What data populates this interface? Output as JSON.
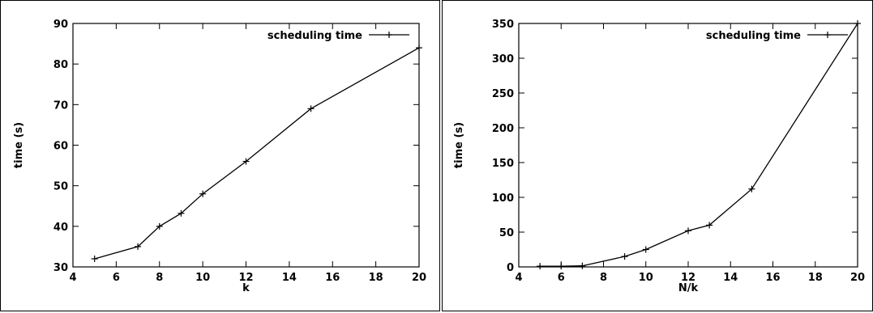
{
  "chart_data": [
    {
      "type": "line",
      "title": "",
      "xlabel": "k",
      "ylabel": "time (s)",
      "xlim": [
        4,
        20
      ],
      "ylim": [
        30,
        90
      ],
      "xticks": [
        4,
        6,
        8,
        10,
        12,
        14,
        16,
        18,
        20
      ],
      "yticks": [
        30,
        40,
        50,
        60,
        70,
        80,
        90
      ],
      "legend_position": "top-right",
      "grid": false,
      "series": [
        {
          "name": "scheduling time",
          "x": [
            5,
            7,
            8,
            9,
            10,
            12,
            15,
            20
          ],
          "y": [
            32,
            35,
            40,
            43.2,
            48,
            56,
            69,
            84
          ]
        }
      ]
    },
    {
      "type": "line",
      "title": "",
      "xlabel": "N/k",
      "ylabel": "time (s)",
      "xlim": [
        4,
        20
      ],
      "ylim": [
        0,
        350
      ],
      "xticks": [
        4,
        6,
        8,
        10,
        12,
        14,
        16,
        18,
        20
      ],
      "yticks": [
        0,
        50,
        100,
        150,
        200,
        250,
        300,
        350
      ],
      "legend_position": "top-right",
      "grid": false,
      "series": [
        {
          "name": "scheduling time",
          "x": [
            5,
            6,
            7,
            9,
            10,
            12,
            13,
            15,
            20
          ],
          "y": [
            1,
            1,
            1.5,
            15,
            25,
            52,
            60,
            112,
            350
          ]
        }
      ]
    }
  ]
}
